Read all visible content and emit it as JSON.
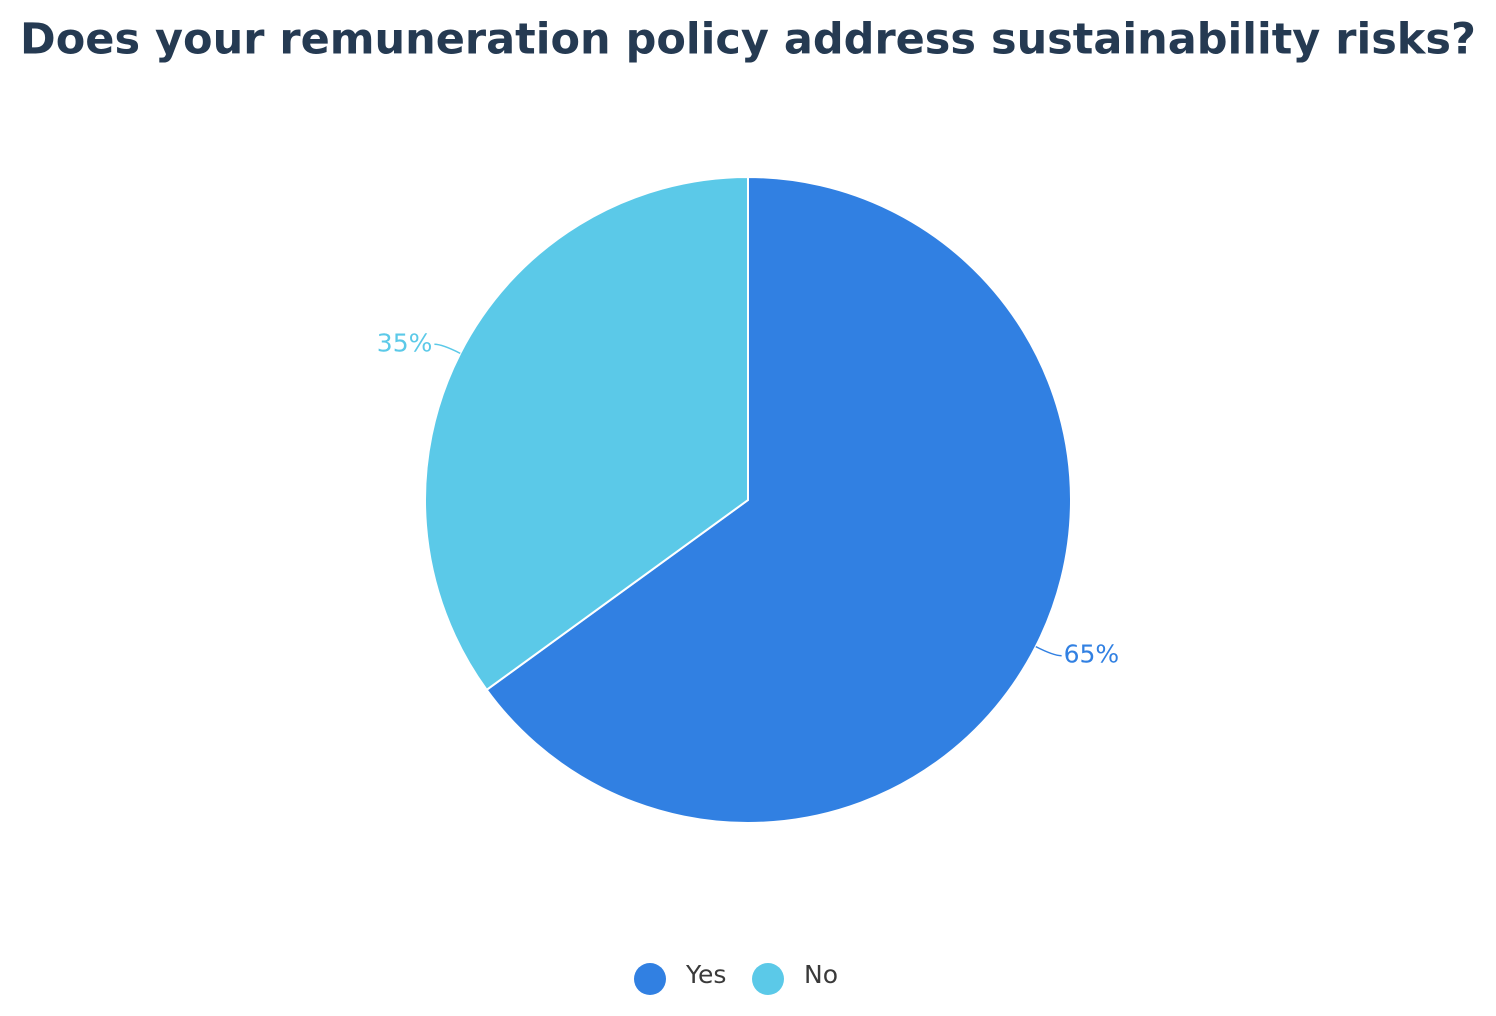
{
  "chart_data": {
    "type": "pie",
    "title": "Does your remuneration policy address sustainability risks?",
    "categories": [
      "Yes",
      "No"
    ],
    "values": [
      65,
      35
    ],
    "value_labels": [
      "65%",
      "35%"
    ],
    "colors": [
      "#3180e2",
      "#5bc9e8"
    ],
    "legend": "bottom"
  }
}
